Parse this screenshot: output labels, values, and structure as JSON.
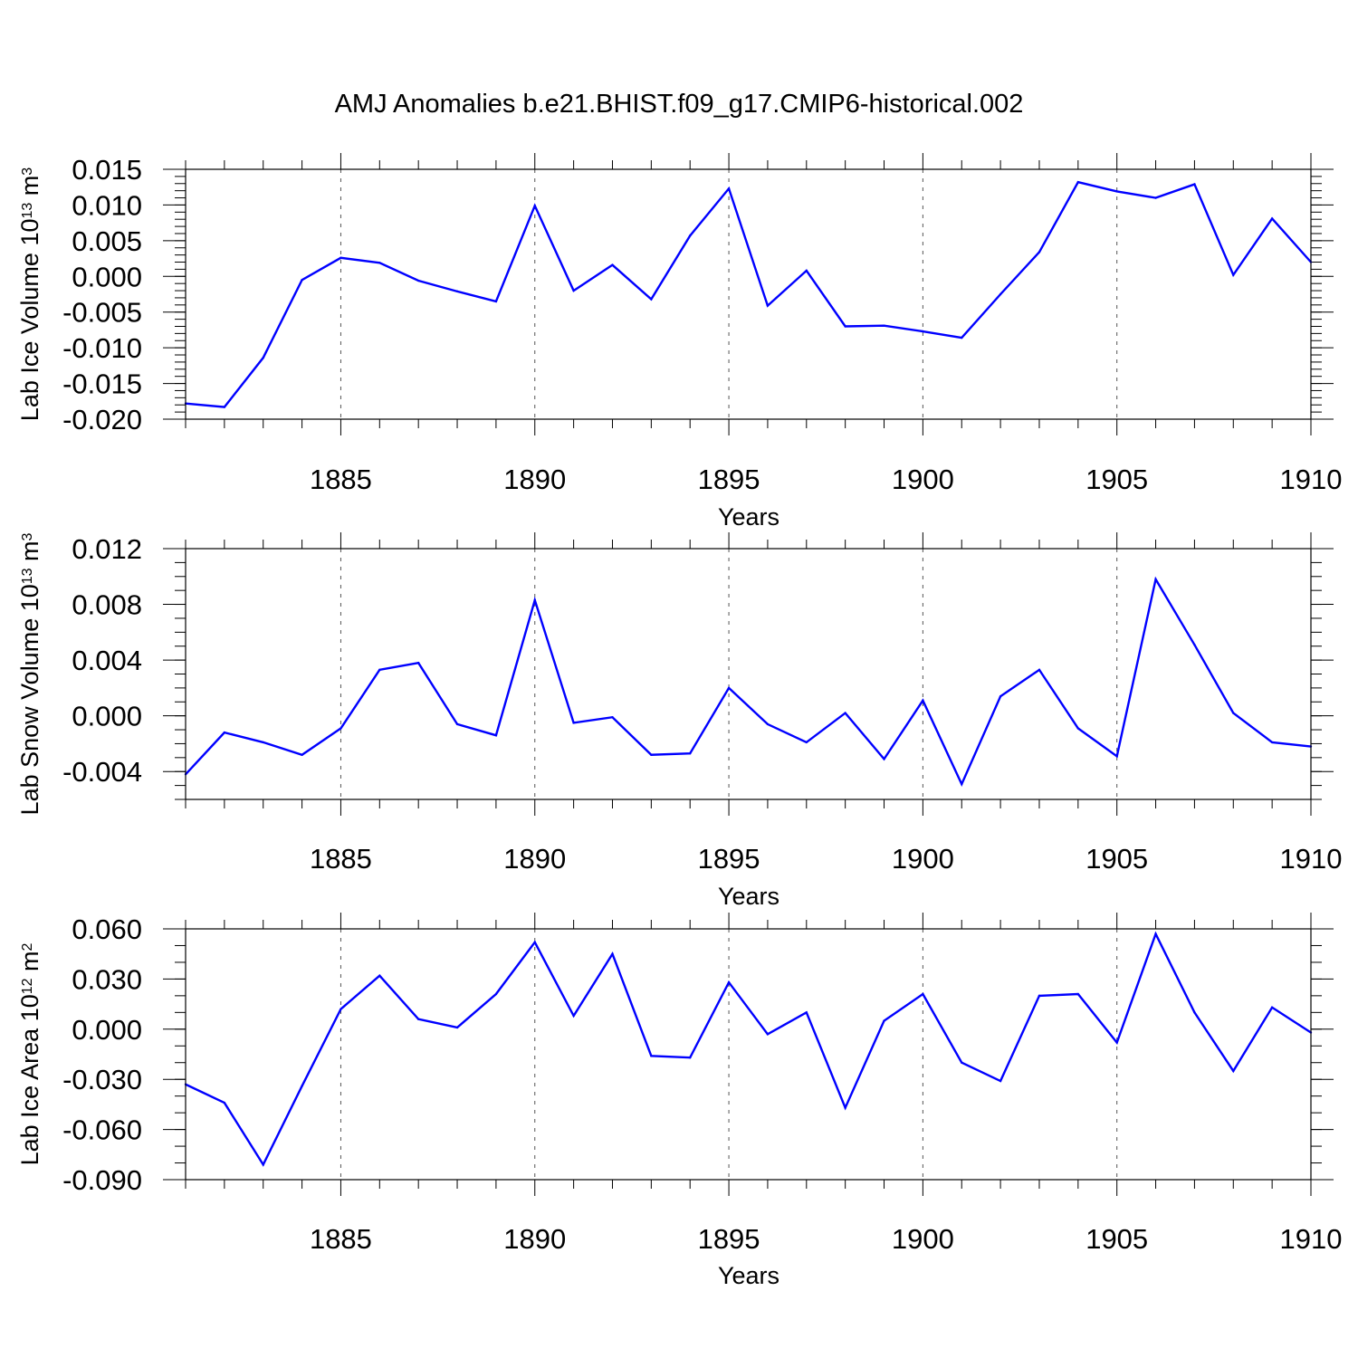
{
  "figure": {
    "title": "AMJ Anomalies b.e21.BHIST.f09_g17.CMIP6-historical.002"
  },
  "chart_data": [
    {
      "type": "line",
      "title": "AMJ Anomalies b.e21.BHIST.f09_g17.CMIP6-historical.002",
      "xlabel": "Years",
      "ylabel": {
        "prefix": "Lab Ice Volume 10",
        "exp": "13",
        "unit": " m",
        "unit_exp": "3"
      },
      "xlim": [
        1881,
        1910
      ],
      "ylim": [
        -0.02,
        0.015
      ],
      "x_major_ticks": [
        1885,
        1890,
        1895,
        1900,
        1905,
        1910
      ],
      "x_tick_labels": [
        "1885",
        "1890",
        "1895",
        "1900",
        "1905",
        "1910"
      ],
      "y_ticks": [
        -0.02,
        -0.015,
        -0.01,
        -0.005,
        0.0,
        0.005,
        0.01,
        0.015
      ],
      "y_tick_labels": [
        "-0.020",
        "-0.015",
        "-0.010",
        "-0.005",
        "0.000",
        "0.005",
        "0.010",
        "0.015"
      ],
      "y_minor_step": 0.001,
      "grid": "dashed vertical at major x ticks",
      "line_color": "#0000ff",
      "x": [
        1881,
        1882,
        1883,
        1884,
        1885,
        1886,
        1887,
        1888,
        1889,
        1890,
        1891,
        1892,
        1893,
        1894,
        1895,
        1896,
        1897,
        1898,
        1899,
        1900,
        1901,
        1902,
        1903,
        1904,
        1905,
        1906,
        1907,
        1908,
        1909,
        1910
      ],
      "values": [
        -0.0178,
        -0.0183,
        -0.0114,
        -0.0005,
        0.0026,
        0.0019,
        -0.0006,
        -0.0021,
        -0.0035,
        0.0099,
        -0.002,
        0.0016,
        -0.0032,
        0.0057,
        0.0123,
        -0.0041,
        0.0008,
        -0.007,
        -0.0069,
        -0.0077,
        -0.0086,
        -0.0025,
        0.0034,
        0.0132,
        0.0119,
        0.011,
        0.0129,
        0.0002,
        0.0081,
        0.002
      ]
    },
    {
      "type": "line",
      "xlabel": "Years",
      "ylabel": {
        "prefix": "Lab Snow Volume 10",
        "exp": "13",
        "unit": " m",
        "unit_exp": "3"
      },
      "xlim": [
        1881,
        1910
      ],
      "ylim": [
        -0.006,
        0.012
      ],
      "x_major_ticks": [
        1885,
        1890,
        1895,
        1900,
        1905,
        1910
      ],
      "x_tick_labels": [
        "1885",
        "1890",
        "1895",
        "1900",
        "1905",
        "1910"
      ],
      "y_ticks": [
        -0.004,
        0.0,
        0.004,
        0.008,
        0.012
      ],
      "y_tick_labels": [
        "-0.004",
        "0.000",
        "0.004",
        "0.008",
        "0.012"
      ],
      "y_minor_step": 0.001,
      "grid": "dashed vertical at major x ticks",
      "line_color": "#0000ff",
      "x": [
        1881,
        1882,
        1883,
        1884,
        1885,
        1886,
        1887,
        1888,
        1889,
        1890,
        1891,
        1892,
        1893,
        1894,
        1895,
        1896,
        1897,
        1898,
        1899,
        1900,
        1901,
        1902,
        1903,
        1904,
        1905,
        1906,
        1907,
        1908,
        1909,
        1910
      ],
      "values": [
        -0.0042,
        -0.0012,
        -0.0019,
        -0.0028,
        -0.0009,
        0.0033,
        0.0038,
        -0.0006,
        -0.0014,
        0.0083,
        -0.0005,
        -0.0001,
        -0.0028,
        -0.0027,
        0.002,
        -0.0006,
        -0.0019,
        0.0002,
        -0.0031,
        0.0011,
        -0.0049,
        0.0014,
        0.0033,
        -0.0009,
        -0.0029,
        0.0098,
        0.0051,
        0.0002,
        -0.0019,
        -0.0022
      ]
    },
    {
      "type": "line",
      "xlabel": "Years",
      "ylabel": {
        "prefix": "Lab Ice Area 10",
        "exp": "12",
        "unit": " m",
        "unit_exp": "2"
      },
      "xlim": [
        1881,
        1910
      ],
      "ylim": [
        -0.09,
        0.06
      ],
      "x_major_ticks": [
        1885,
        1890,
        1895,
        1900,
        1905,
        1910
      ],
      "x_tick_labels": [
        "1885",
        "1890",
        "1895",
        "1900",
        "1905",
        "1910"
      ],
      "y_ticks": [
        -0.09,
        -0.06,
        -0.03,
        0.0,
        0.03,
        0.06
      ],
      "y_tick_labels": [
        "-0.090",
        "-0.060",
        "-0.030",
        "0.000",
        "0.030",
        "0.060"
      ],
      "y_minor_step": 0.01,
      "grid": "dashed vertical at major x ticks",
      "line_color": "#0000ff",
      "x": [
        1881,
        1882,
        1883,
        1884,
        1885,
        1886,
        1887,
        1888,
        1889,
        1890,
        1891,
        1892,
        1893,
        1894,
        1895,
        1896,
        1897,
        1898,
        1899,
        1900,
        1901,
        1902,
        1903,
        1904,
        1905,
        1906,
        1907,
        1908,
        1909,
        1910
      ],
      "values": [
        -0.033,
        -0.044,
        -0.081,
        -0.034,
        0.012,
        0.032,
        0.006,
        0.001,
        0.021,
        0.052,
        0.008,
        0.045,
        -0.016,
        -0.017,
        0.028,
        -0.003,
        0.01,
        -0.047,
        0.005,
        0.021,
        -0.02,
        -0.031,
        0.02,
        0.021,
        -0.008,
        0.057,
        0.01,
        -0.025,
        0.013,
        -0.002
      ]
    }
  ]
}
